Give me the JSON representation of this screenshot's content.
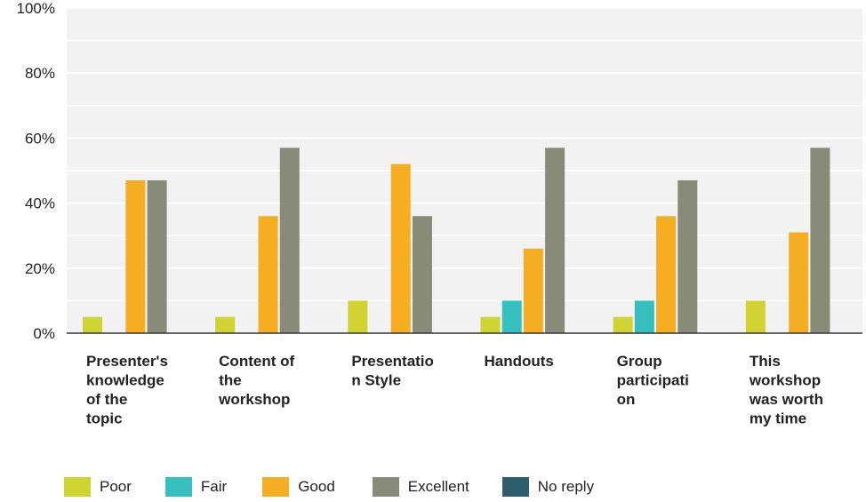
{
  "chart_data": {
    "type": "bar",
    "categories": [
      [
        "Presenter's",
        "knowledge",
        "of the",
        "topic"
      ],
      [
        "Content of",
        "the",
        "workshop"
      ],
      [
        "Presentatio",
        "n Style"
      ],
      [
        "Handouts"
      ],
      [
        "Group",
        "participati",
        "on"
      ],
      [
        "This",
        "workshop",
        "was worth",
        "my time"
      ]
    ],
    "series": [
      {
        "name": "Poor",
        "color": "#cfd432",
        "values": [
          5,
          5,
          10,
          5,
          5,
          10
        ]
      },
      {
        "name": "Fair",
        "color": "#36bfbf",
        "values": [
          0,
          0,
          0,
          10,
          10,
          0
        ]
      },
      {
        "name": "Good",
        "color": "#f5ae22",
        "values": [
          47,
          36,
          52,
          26,
          36,
          31
        ]
      },
      {
        "name": "Excellent",
        "color": "#888b78",
        "values": [
          47,
          57,
          36,
          57,
          47,
          57
        ]
      },
      {
        "name": "No reply",
        "color": "#2d5e6e",
        "values": [
          0,
          0,
          0,
          0,
          0,
          0
        ]
      }
    ],
    "yticks": [
      "0%",
      "20%",
      "40%",
      "60%",
      "80%",
      "100%"
    ],
    "ylim": [
      0,
      100
    ],
    "grid": true,
    "legend_position": "bottom-left"
  }
}
